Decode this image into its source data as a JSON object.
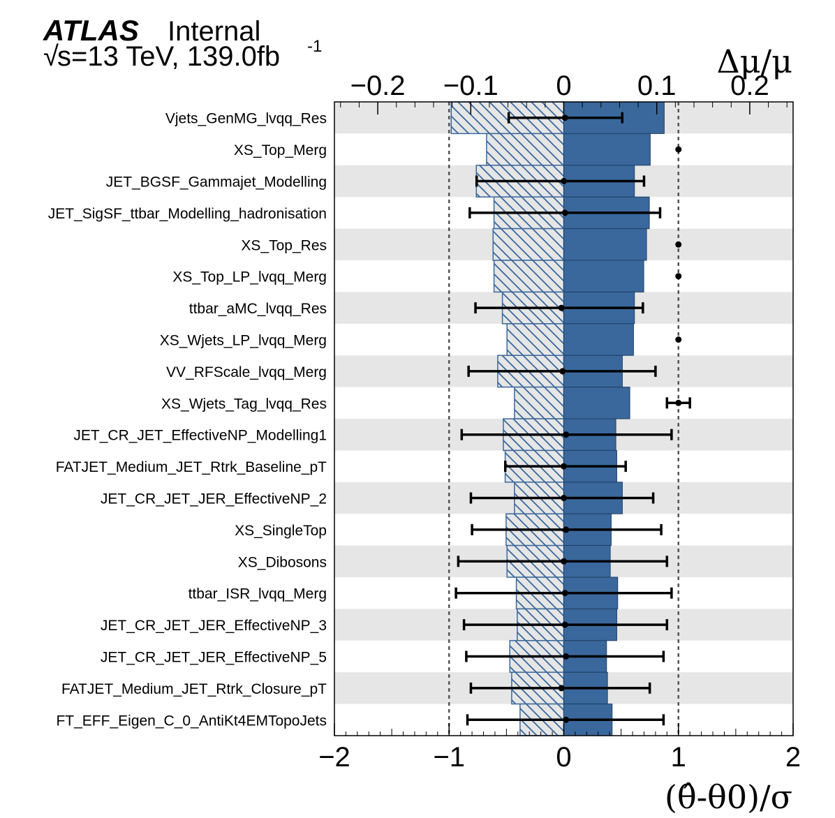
{
  "header": {
    "experiment": "ATLAS",
    "status": "Internal",
    "energy_prefix": "√",
    "energy_text": "s=13 TeV, 139.0fb",
    "lumi_exponent": "-1"
  },
  "chart_data": {
    "type": "bar",
    "title": "",
    "xlabel": "(θ̂-θ0)/σ",
    "x2label": "Δμ/μ",
    "xlim": [
      -2,
      2
    ],
    "x2lim": [
      -0.2466,
      0.2466
    ],
    "xticks": [
      "−2",
      "−1",
      "0",
      "1",
      "2"
    ],
    "x2ticks": [
      "−0.2",
      "−0.1",
      "0",
      "0.1",
      "0.2"
    ],
    "dashed_lines_at": [
      -1,
      1
    ],
    "alternating_row_shading": true,
    "colors": {
      "postfit_fill": "#3a689c",
      "prefit_hatch": "#3a689c",
      "prefit_bg": "#e6e6e6",
      "row_shade": "#e6e6e6",
      "pull": "#000000",
      "dashed": "#555555"
    },
    "categories": [
      "Vjets_GenMG_lvqq_Res",
      "XS_Top_Merg",
      "JET_BGSF_Gammajet_Modelling",
      "JET_SigSF_ttbar_Modelling_hadronisation",
      "XS_Top_Res",
      "XS_Top_LP_lvqq_Merg",
      "ttbar_aMC_lvqq_Res",
      "XS_Wjets_LP_lvqq_Merg",
      "VV_RFScale_lvqq_Merg",
      "XS_Wjets_Tag_lvqq_Res",
      "JET_CR_JET_EffectiveNP_Modelling1",
      "FATJET_Medium_JET_Rtrk_Baseline_pT",
      "JET_CR_JET_JER_EffectiveNP_2",
      "XS_SingleTop",
      "XS_Dibosons",
      "ttbar_ISR_lvqq_Merg",
      "JET_CR_JET_JER_EffectiveNP_3",
      "JET_CR_JET_JER_EffectiveNP_5",
      "FATJET_Medium_JET_Rtrk_Closure_pT",
      "FT_EFF_Eigen_C_0_AntiKt4EMTopoJets"
    ],
    "impact_up": [
      0.108,
      0.093,
      0.076,
      0.092,
      0.089,
      0.086,
      0.076,
      0.075,
      0.063,
      0.071,
      0.056,
      0.057,
      0.063,
      0.051,
      0.05,
      0.058,
      0.057,
      0.046,
      0.047,
      0.052
    ],
    "impact_down": [
      -0.121,
      -0.083,
      -0.094,
      -0.075,
      -0.076,
      -0.075,
      -0.066,
      -0.061,
      -0.071,
      -0.053,
      -0.065,
      -0.063,
      -0.053,
      -0.062,
      -0.061,
      -0.051,
      -0.05,
      -0.058,
      -0.056,
      -0.047
    ],
    "pull_central": [
      0.01,
      1.0,
      0.0,
      0.01,
      1.0,
      1.0,
      -0.02,
      1.0,
      -0.01,
      1.0,
      0.02,
      0.0,
      0.0,
      0.02,
      0.0,
      0.01,
      0.01,
      0.02,
      -0.02,
      0.02
    ],
    "pull_err_low": [
      -0.48,
      null,
      -0.76,
      -0.82,
      null,
      null,
      -0.77,
      null,
      -0.83,
      0.9,
      -0.89,
      -0.51,
      -0.81,
      -0.8,
      -0.92,
      -0.94,
      -0.87,
      -0.85,
      -0.81,
      -0.84
    ],
    "pull_err_high": [
      0.51,
      null,
      0.7,
      0.84,
      null,
      null,
      0.69,
      null,
      0.8,
      1.1,
      0.94,
      0.54,
      0.78,
      0.85,
      0.9,
      0.94,
      0.9,
      0.87,
      0.75,
      0.87
    ]
  }
}
